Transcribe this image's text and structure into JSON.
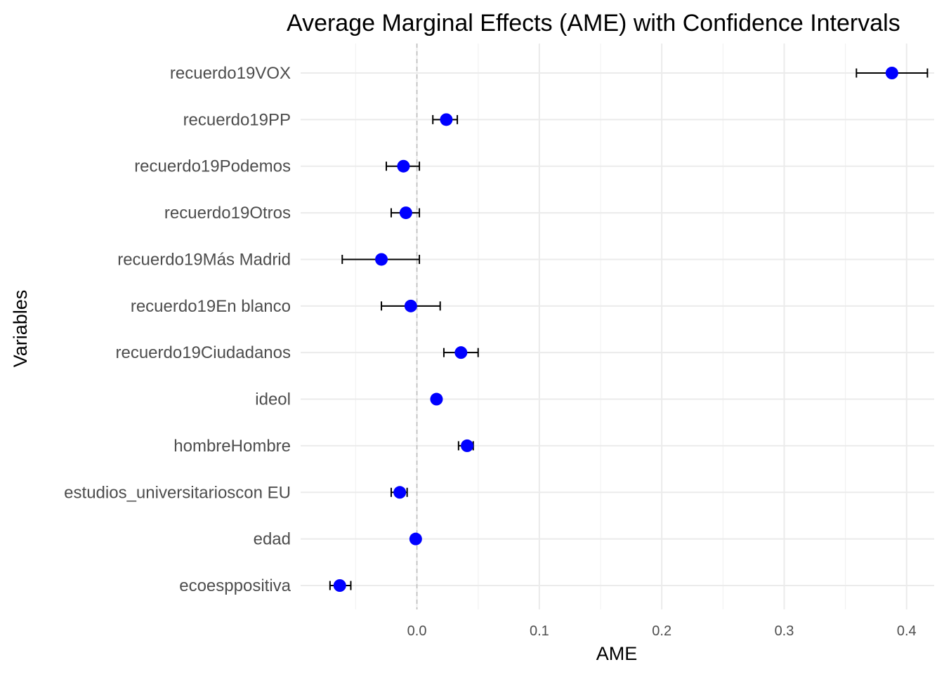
{
  "chart_data": {
    "type": "errorbar",
    "title": "Average Marginal Effects (AME) with Confidence Intervals",
    "xlabel": "AME",
    "ylabel": "Variables",
    "xlim": [
      -0.095,
      0.4225
    ],
    "xticks": [
      0.0,
      0.1,
      0.2,
      0.3,
      0.4
    ],
    "xtick_labels": [
      "0.0",
      "0.1",
      "0.2",
      "0.3",
      "0.4"
    ],
    "reference_line": 0,
    "point_color": "#0000ff",
    "grid": true,
    "variables": [
      {
        "name": "recuerdo19VOX",
        "ame": 0.388,
        "lower": 0.359,
        "upper": 0.417
      },
      {
        "name": "recuerdo19PP",
        "ame": 0.024,
        "lower": 0.013,
        "upper": 0.033
      },
      {
        "name": "recuerdo19Podemos",
        "ame": -0.011,
        "lower": -0.025,
        "upper": 0.002
      },
      {
        "name": "recuerdo19Otros",
        "ame": -0.009,
        "lower": -0.021,
        "upper": 0.002
      },
      {
        "name": "recuerdo19Más Madrid",
        "ame": -0.029,
        "lower": -0.061,
        "upper": 0.002
      },
      {
        "name": "recuerdo19En blanco",
        "ame": -0.005,
        "lower": -0.029,
        "upper": 0.019
      },
      {
        "name": "recuerdo19Ciudadanos",
        "ame": 0.036,
        "lower": 0.022,
        "upper": 0.05
      },
      {
        "name": "ideol",
        "ame": 0.016,
        "lower": 0.014,
        "upper": 0.018
      },
      {
        "name": "hombreHombre",
        "ame": 0.041,
        "lower": 0.034,
        "upper": 0.046
      },
      {
        "name": "estudios_universitarioscon EU",
        "ame": -0.014,
        "lower": -0.021,
        "upper": -0.008
      },
      {
        "name": "edad",
        "ame": -0.001,
        "lower": -0.002,
        "upper": 0.0
      },
      {
        "name": "ecoesppositiva",
        "ame": -0.063,
        "lower": -0.071,
        "upper": -0.054
      }
    ]
  }
}
